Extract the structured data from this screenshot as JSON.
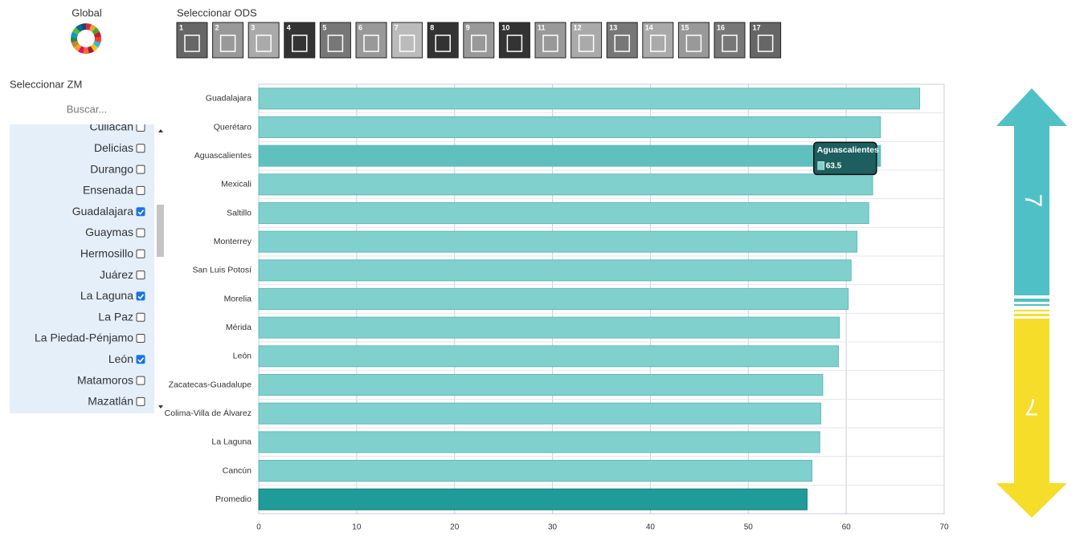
{
  "header": {
    "global_label": "Global",
    "ods_label": "Seleccionar ODS",
    "ods_numbers": [
      "1",
      "2",
      "3",
      "4",
      "5",
      "6",
      "7",
      "8",
      "9",
      "10",
      "11",
      "12",
      "13",
      "14",
      "15",
      "16",
      "17"
    ]
  },
  "sidebar": {
    "label": "Seleccionar ZM",
    "search_placeholder": "Buscar...",
    "items": [
      {
        "name": "Culiacán",
        "checked": false
      },
      {
        "name": "Delicias",
        "checked": false
      },
      {
        "name": "Durango",
        "checked": false
      },
      {
        "name": "Ensenada",
        "checked": false
      },
      {
        "name": "Guadalajara",
        "checked": true
      },
      {
        "name": "Guaymas",
        "checked": false
      },
      {
        "name": "Hermosillo",
        "checked": false
      },
      {
        "name": "Juárez",
        "checked": false
      },
      {
        "name": "La Laguna",
        "checked": true
      },
      {
        "name": "La Paz",
        "checked": false
      },
      {
        "name": "La Piedad-Pénjamo",
        "checked": false
      },
      {
        "name": "León",
        "checked": true
      },
      {
        "name": "Matamoros",
        "checked": false
      },
      {
        "name": "Mazatlán",
        "checked": false
      }
    ]
  },
  "arrow": {
    "top_number": "7",
    "bottom_number": "7"
  },
  "chart_data": {
    "type": "bar",
    "orientation": "horizontal",
    "categories": [
      "Guadalajara",
      "Querétaro",
      "Aguascalientes",
      "Mexicali",
      "Saltillo",
      "Monterrey",
      "San Luis Potosí",
      "Morelia",
      "Mérida",
      "León",
      "Zacatecas-Guadalupe",
      "Colima-Villa de Álvarez",
      "La Laguna",
      "Cancún",
      "Promedio"
    ],
    "values": [
      67.5,
      63.5,
      63.5,
      62.7,
      62.3,
      61.1,
      60.5,
      60.2,
      59.3,
      59.2,
      57.6,
      57.4,
      57.3,
      56.5,
      56.0
    ],
    "bar_colors": [
      "#80d0ce",
      "#80d0ce",
      "#5fc0be",
      "#80d0ce",
      "#80d0ce",
      "#80d0ce",
      "#80d0ce",
      "#80d0ce",
      "#80d0ce",
      "#80d0ce",
      "#80d0ce",
      "#80d0ce",
      "#80d0ce",
      "#80d0ce",
      "#1f9c9a"
    ],
    "xlim": [
      0,
      70
    ],
    "xticks": [
      0,
      10,
      20,
      30,
      40,
      50,
      60,
      70
    ],
    "grid": true,
    "tooltip_index": 2
  }
}
